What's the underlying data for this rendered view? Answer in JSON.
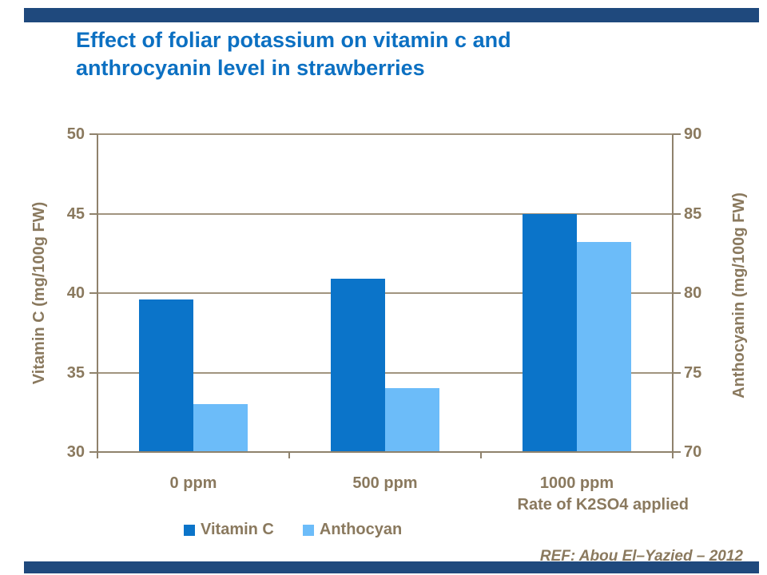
{
  "slide": {
    "title_line1": "Effect of foliar potassium on vitamin c and",
    "title_line2": "anthrocyanin level in strawberries",
    "reference": "REF: Abou El–Yazied – 2012"
  },
  "colors": {
    "title_blue": "#0C70C2",
    "decoration_navy": "#1F497D",
    "vitamin_c_bar": "#0B74C9",
    "anthocyan_bar": "#6CBCF9",
    "axis_text_brown": "#8A795E",
    "gridline_brown": "#A1947F"
  },
  "chart_data": {
    "type": "bar",
    "title": "Effect of foliar potassium on vitamin c and anthrocyanin level in strawberries",
    "categories": [
      "0 ppm",
      "500 ppm",
      "1000 ppm"
    ],
    "series": [
      {
        "name": "Vitamin C",
        "axis": "left",
        "color": "#0B74C9",
        "values": [
          39.6,
          40.9,
          45.0
        ]
      },
      {
        "name": "Anthocyan",
        "axis": "right",
        "color": "#6CBCF9",
        "values": [
          73.0,
          74.0,
          83.2
        ]
      }
    ],
    "left_axis": {
      "label": "Vitamin C (mg/100g FW)",
      "min": 30,
      "max": 50,
      "ticks": [
        50,
        45,
        40,
        35,
        30
      ]
    },
    "right_axis": {
      "label": "Anthocyanin (mg/100g FW)",
      "min": 70,
      "max": 90,
      "ticks": [
        90,
        85,
        80,
        75,
        70
      ]
    },
    "xlabel": "Rate of K2SO4 applied",
    "legend": [
      "Vitamin C",
      "Anthocyan"
    ],
    "legend_position": "bottom",
    "grid": true
  }
}
